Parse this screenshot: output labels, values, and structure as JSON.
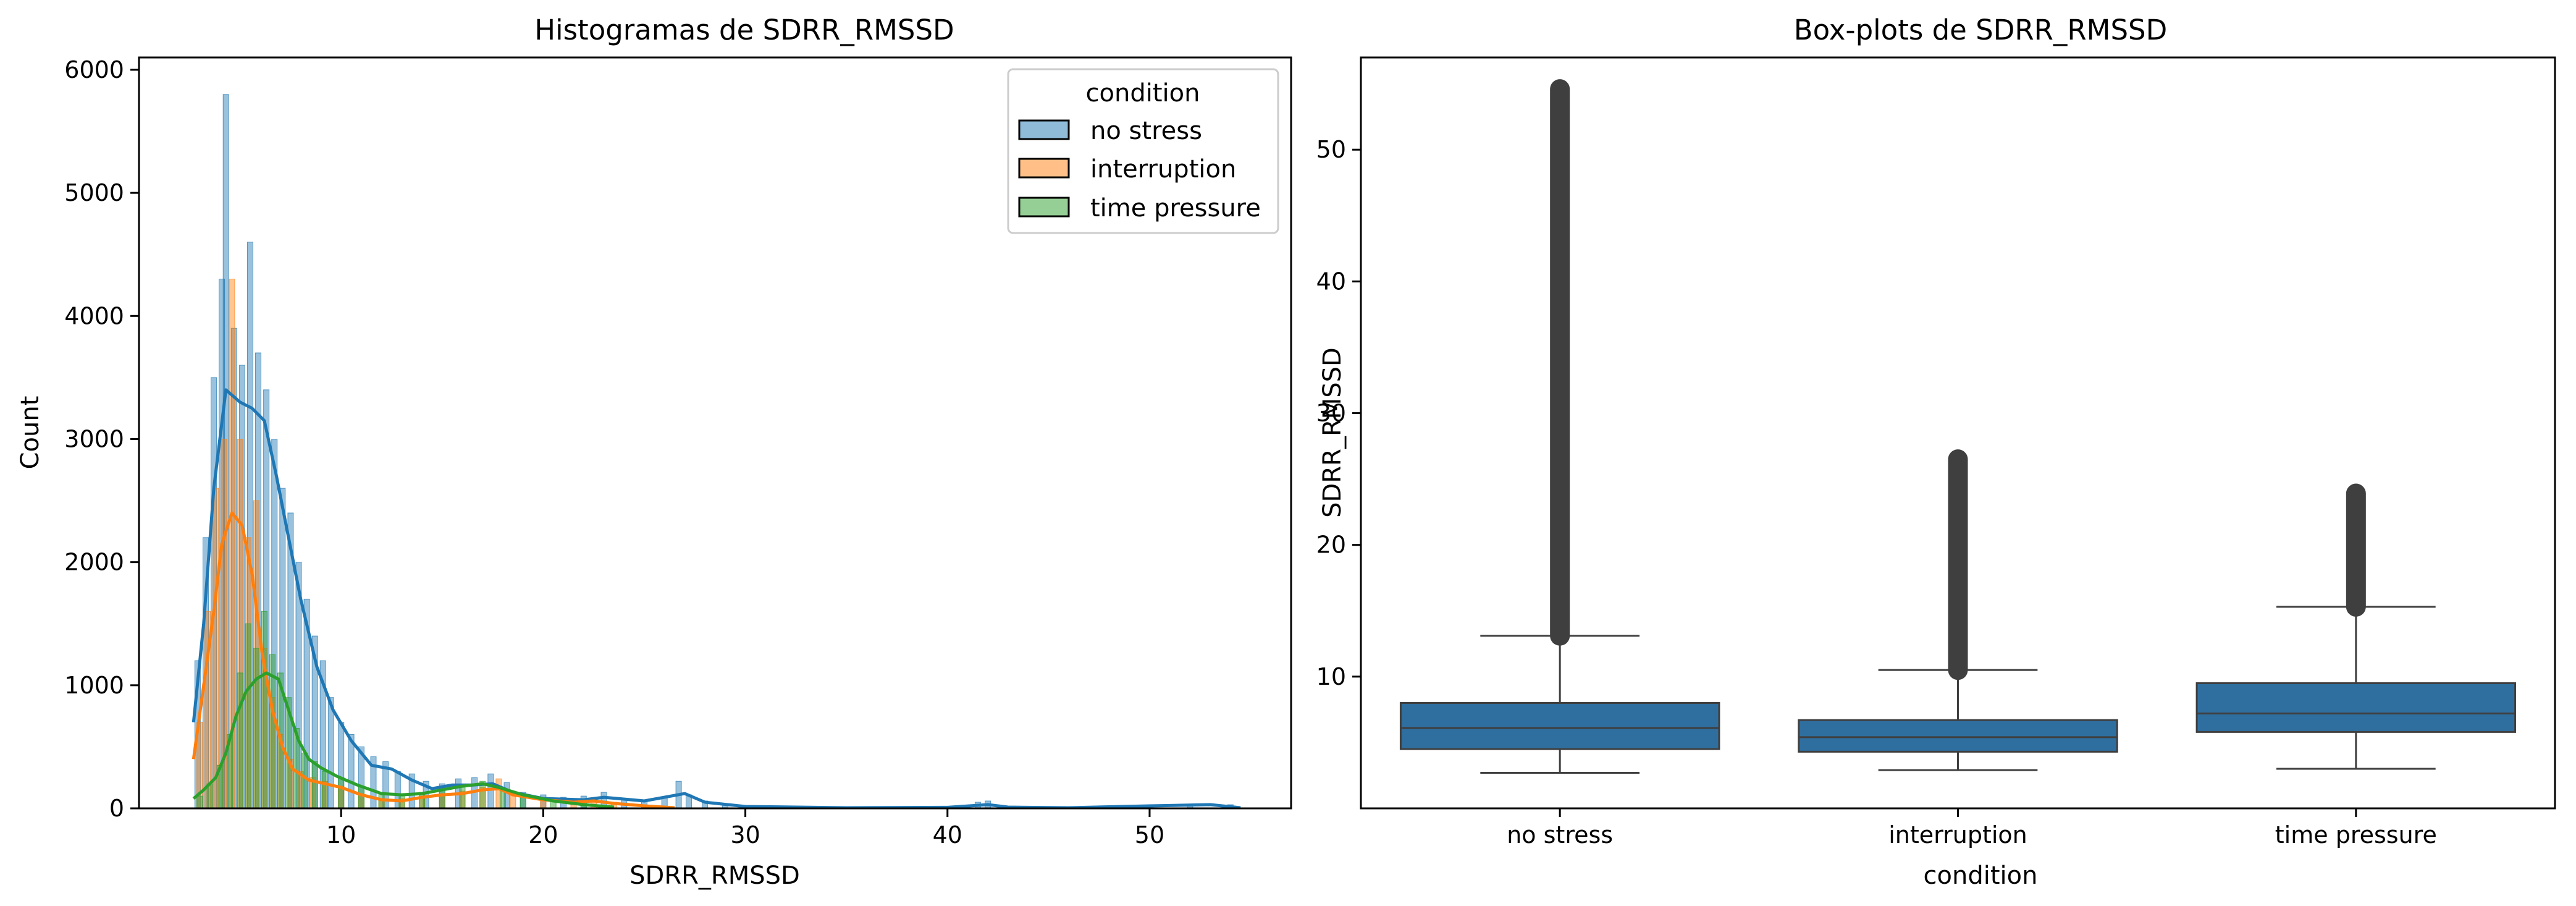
{
  "chart_data": [
    {
      "type": "histogram",
      "title": "Histogramas de SDRR_RMSSD",
      "xlabel": "SDRR_RMSSD",
      "ylabel": "Count",
      "xlim": [
        0,
        57
      ],
      "ylim": [
        0,
        6100
      ],
      "xticks": [
        10,
        20,
        30,
        40,
        50
      ],
      "yticks": [
        0,
        1000,
        2000,
        3000,
        4000,
        5000,
        6000
      ],
      "grid": false,
      "legend": {
        "title": "condition",
        "placement": "top-right",
        "entries": [
          "no stress",
          "interruption",
          "time pressure"
        ]
      },
      "series": [
        {
          "name": "no stress",
          "color": "#1f77b4",
          "kde": [
            [
              2.7,
              700
            ],
            [
              3.2,
              1500
            ],
            [
              3.7,
              2600
            ],
            [
              4.3,
              3400
            ],
            [
              5.0,
              3300
            ],
            [
              5.6,
              3250
            ],
            [
              6.2,
              3150
            ],
            [
              6.8,
              2700
            ],
            [
              7.4,
              2200
            ],
            [
              8.0,
              1700
            ],
            [
              8.8,
              1150
            ],
            [
              9.6,
              800
            ],
            [
              10.5,
              550
            ],
            [
              11.5,
              350
            ],
            [
              12.5,
              320
            ],
            [
              13.5,
              230
            ],
            [
              14.5,
              160
            ],
            [
              15.5,
              190
            ],
            [
              16.5,
              190
            ],
            [
              17.5,
              200
            ],
            [
              18.5,
              130
            ],
            [
              20.0,
              80
            ],
            [
              22.0,
              70
            ],
            [
              23.0,
              90
            ],
            [
              25.0,
              60
            ],
            [
              27.0,
              120
            ],
            [
              28.0,
              50
            ],
            [
              30.0,
              15
            ],
            [
              35.0,
              5
            ],
            [
              40.0,
              8
            ],
            [
              42.0,
              30
            ],
            [
              43.0,
              10
            ],
            [
              46.0,
              5
            ],
            [
              50.0,
              20
            ],
            [
              53.0,
              30
            ],
            [
              54.5,
              5
            ]
          ],
          "histogram": [
            [
              2.9,
              1200
            ],
            [
              3.3,
              2200
            ],
            [
              3.7,
              3500
            ],
            [
              4.1,
              4300
            ],
            [
              4.3,
              5800
            ],
            [
              4.7,
              3900
            ],
            [
              5.1,
              3600
            ],
            [
              5.5,
              4600
            ],
            [
              5.9,
              3700
            ],
            [
              6.3,
              3400
            ],
            [
              6.7,
              3000
            ],
            [
              7.1,
              2600
            ],
            [
              7.5,
              2400
            ],
            [
              7.9,
              2000
            ],
            [
              8.3,
              1700
            ],
            [
              8.7,
              1400
            ],
            [
              9.1,
              1200
            ],
            [
              9.5,
              900
            ],
            [
              10.0,
              700
            ],
            [
              10.5,
              600
            ],
            [
              11.0,
              500
            ],
            [
              11.6,
              420
            ],
            [
              12.2,
              380
            ],
            [
              12.8,
              300
            ],
            [
              13.5,
              280
            ],
            [
              14.2,
              220
            ],
            [
              15.0,
              200
            ],
            [
              15.8,
              240
            ],
            [
              16.6,
              250
            ],
            [
              17.4,
              280
            ],
            [
              18.2,
              210
            ],
            [
              19.0,
              130
            ],
            [
              20.0,
              110
            ],
            [
              21.0,
              90
            ],
            [
              22.0,
              100
            ],
            [
              23.0,
              130
            ],
            [
              24.0,
              80
            ],
            [
              25.0,
              70
            ],
            [
              26.0,
              90
            ],
            [
              26.7,
              220
            ],
            [
              27.2,
              110
            ],
            [
              28.0,
              60
            ],
            [
              29.0,
              40
            ],
            [
              30.5,
              20
            ],
            [
              33.0,
              15
            ],
            [
              36.0,
              10
            ],
            [
              39.0,
              10
            ],
            [
              41.5,
              50
            ],
            [
              42.0,
              60
            ],
            [
              44.0,
              10
            ],
            [
              47.0,
              10
            ],
            [
              50.0,
              25
            ],
            [
              52.0,
              30
            ],
            [
              54.0,
              30
            ]
          ]
        },
        {
          "name": "interruption",
          "color": "#ff7f0e",
          "kde": [
            [
              2.7,
              400
            ],
            [
              3.2,
              1000
            ],
            [
              3.7,
              1600
            ],
            [
              4.1,
              2150
            ],
            [
              4.6,
              2400
            ],
            [
              5.1,
              2300
            ],
            [
              5.6,
              1900
            ],
            [
              6.1,
              1250
            ],
            [
              6.6,
              800
            ],
            [
              7.1,
              500
            ],
            [
              7.6,
              320
            ],
            [
              8.4,
              230
            ],
            [
              9.2,
              200
            ],
            [
              10.0,
              170
            ],
            [
              11.0,
              110
            ],
            [
              12.0,
              70
            ],
            [
              13.0,
              60
            ],
            [
              14.0,
              90
            ],
            [
              15.0,
              110
            ],
            [
              16.0,
              120
            ],
            [
              17.0,
              150
            ],
            [
              17.8,
              160
            ],
            [
              18.5,
              110
            ],
            [
              20.0,
              70
            ],
            [
              21.5,
              50
            ],
            [
              22.5,
              60
            ],
            [
              23.5,
              40
            ],
            [
              25.0,
              20
            ],
            [
              26.5,
              5
            ]
          ],
          "histogram": [
            [
              3.0,
              700
            ],
            [
              3.4,
              1600
            ],
            [
              3.8,
              2600
            ],
            [
              4.2,
              3000
            ],
            [
              4.6,
              4300
            ],
            [
              5.0,
              3000
            ],
            [
              5.4,
              2200
            ],
            [
              5.8,
              2500
            ],
            [
              6.2,
              1300
            ],
            [
              6.6,
              900
            ],
            [
              7.0,
              600
            ],
            [
              7.5,
              400
            ],
            [
              8.0,
              300
            ],
            [
              8.6,
              250
            ],
            [
              9.2,
              220
            ],
            [
              10.0,
              180
            ],
            [
              11.0,
              120
            ],
            [
              12.0,
              80
            ],
            [
              13.0,
              80
            ],
            [
              14.0,
              100
            ],
            [
              15.0,
              120
            ],
            [
              16.0,
              140
            ],
            [
              17.0,
              170
            ],
            [
              17.8,
              240
            ],
            [
              18.5,
              120
            ],
            [
              20.0,
              80
            ],
            [
              21.5,
              60
            ],
            [
              22.5,
              70
            ],
            [
              23.5,
              50
            ],
            [
              25.0,
              25
            ],
            [
              26.3,
              15
            ]
          ]
        },
        {
          "name": "time pressure",
          "color": "#2ca02c",
          "kde": [
            [
              2.7,
              80
            ],
            [
              3.2,
              150
            ],
            [
              3.8,
              250
            ],
            [
              4.3,
              450
            ],
            [
              4.8,
              750
            ],
            [
              5.3,
              950
            ],
            [
              5.8,
              1050
            ],
            [
              6.3,
              1100
            ],
            [
              6.9,
              1050
            ],
            [
              7.4,
              800
            ],
            [
              7.9,
              550
            ],
            [
              8.4,
              400
            ],
            [
              9.0,
              330
            ],
            [
              9.8,
              260
            ],
            [
              10.8,
              190
            ],
            [
              12.0,
              120
            ],
            [
              13.0,
              110
            ],
            [
              14.0,
              120
            ],
            [
              15.0,
              150
            ],
            [
              16.0,
              180
            ],
            [
              17.0,
              200
            ],
            [
              17.8,
              170
            ],
            [
              19.0,
              110
            ],
            [
              20.5,
              60
            ],
            [
              22.0,
              30
            ],
            [
              23.5,
              10
            ]
          ],
          "histogram": [
            [
              3.0,
              100
            ],
            [
              3.5,
              200
            ],
            [
              4.0,
              350
            ],
            [
              4.5,
              600
            ],
            [
              5.0,
              1100
            ],
            [
              5.4,
              1500
            ],
            [
              5.8,
              1300
            ],
            [
              6.2,
              1600
            ],
            [
              6.6,
              1250
            ],
            [
              7.0,
              1100
            ],
            [
              7.4,
              900
            ],
            [
              7.8,
              650
            ],
            [
              8.2,
              450
            ],
            [
              8.7,
              380
            ],
            [
              9.2,
              300
            ],
            [
              10.0,
              250
            ],
            [
              11.0,
              180
            ],
            [
              12.0,
              130
            ],
            [
              13.0,
              120
            ],
            [
              14.0,
              130
            ],
            [
              15.0,
              160
            ],
            [
              16.0,
              190
            ],
            [
              17.0,
              220
            ],
            [
              18.0,
              160
            ],
            [
              19.0,
              110
            ],
            [
              20.5,
              60
            ],
            [
              22.0,
              30
            ],
            [
              23.3,
              15
            ]
          ]
        }
      ]
    },
    {
      "type": "box",
      "title": "Box-plots de SDRR_RMSSD",
      "xlabel": "condition",
      "ylabel": "SDRR_RMSSD",
      "categories": [
        "no stress",
        "interruption",
        "time pressure"
      ],
      "ylim": [
        0,
        57
      ],
      "yticks": [
        10,
        20,
        30,
        40,
        50
      ],
      "grid": false,
      "color": "#2f6f9f",
      "boxes": [
        {
          "category": "no stress",
          "whisker_low": 2.7,
          "q1": 4.5,
          "median": 6.1,
          "q3": 8.0,
          "whisker_high": 13.1,
          "outliers_range": [
            13.1,
            54.6
          ]
        },
        {
          "category": "interruption",
          "whisker_low": 2.9,
          "q1": 4.3,
          "median": 5.4,
          "q3": 6.7,
          "whisker_high": 10.5,
          "outliers_range": [
            10.5,
            26.5
          ]
        },
        {
          "category": "time pressure",
          "whisker_low": 3.0,
          "q1": 5.8,
          "median": 7.2,
          "q3": 9.5,
          "whisker_high": 15.3,
          "outliers_range": [
            15.3,
            23.9
          ]
        }
      ]
    }
  ]
}
